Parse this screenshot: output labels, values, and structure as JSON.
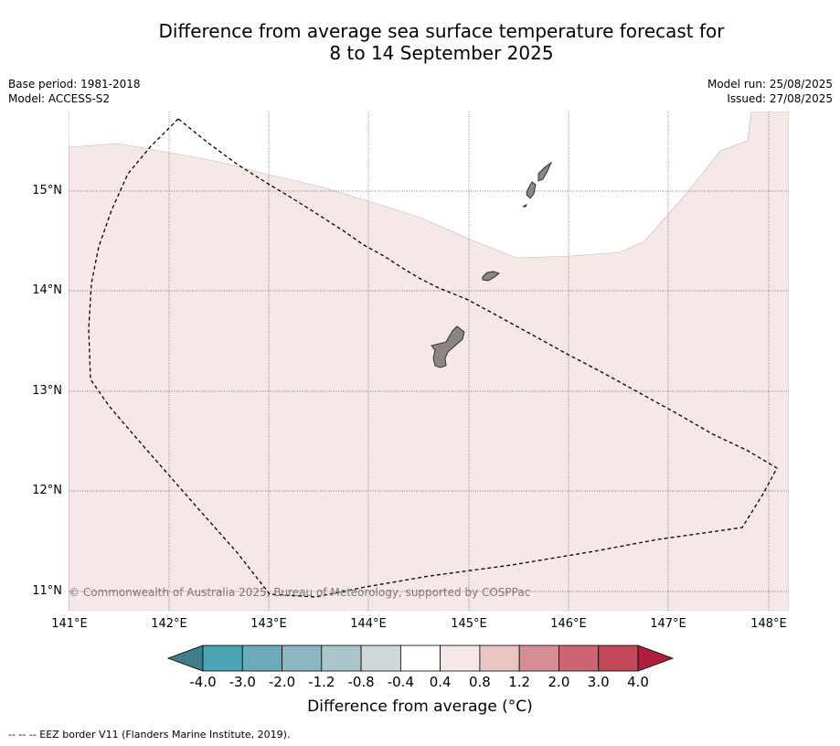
{
  "header": {
    "title_line1": "Difference from average sea surface temperature forecast for",
    "title_line2": "8 to 14 September 2025"
  },
  "meta": {
    "base_period": "Base period: 1981-2018",
    "model": "Model: ACCESS-S2",
    "model_run": "Model run: 25/08/2025",
    "issued": "Issued: 27/08/2025"
  },
  "map": {
    "lat_labels": [
      "15°N",
      "14°N",
      "13°N",
      "12°N",
      "11°N"
    ],
    "lon_labels": [
      "141°E",
      "142°E",
      "143°E",
      "144°E",
      "145°E",
      "146°E",
      "147°E",
      "148°E"
    ],
    "anomaly_fill_color": "#f5e8e7",
    "land_color": "#8c8585",
    "copyright": "© Commonwealth of Australia 2025, Bureau of Meteorology, supported by COSPPac"
  },
  "colorbar": {
    "ticks": [
      "-4.0",
      "-3.0",
      "-2.0",
      "-1.2",
      "-0.8",
      "-0.4",
      "0.4",
      "0.8",
      "1.2",
      "2.0",
      "3.0",
      "4.0"
    ],
    "colors": [
      "#3f7f8c",
      "#4aa4b4",
      "#6aacbc",
      "#8cb6c2",
      "#a9c6cb",
      "#d0d8db",
      "#ffffff",
      "#f5e8e7",
      "#e9c6c4",
      "#d68e96",
      "#cc6571",
      "#c04858",
      "#b0203c"
    ],
    "label": "Difference from average (°C)"
  },
  "legend": {
    "eez_text": "--  --  -- EEZ border V11 (Flanders Marine Institute, 2019)."
  }
}
